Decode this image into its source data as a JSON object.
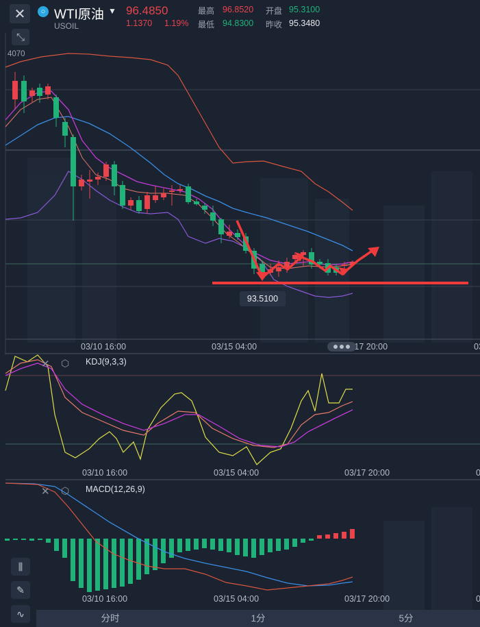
{
  "header": {
    "symbol_name": "WTI原油",
    "symbol_code": "USOIL",
    "price": "96.4850",
    "change": "1.1370",
    "change_pct": "1.19%",
    "high_label": "最高",
    "high_value": "96.8520",
    "low_label": "最低",
    "low_value": "94.8300",
    "open_label": "开盘",
    "open_value": "95.3100",
    "prev_close_label": "昨收",
    "prev_close_value": "95.3480"
  },
  "main_chart": {
    "top_price_label": "4070",
    "marked_price": "93.5100",
    "time_labels": [
      "03/10 16:00",
      "03/15 04:00",
      "03/17 20:00",
      "03"
    ]
  },
  "kdj": {
    "label": "KDJ(9,3,3)",
    "time_labels": [
      "03/10 16:00",
      "03/15 04:00",
      "03/17 20:00",
      "03"
    ]
  },
  "macd": {
    "label": "MACD(12,26,9)",
    "time_labels": [
      "03/10 16:00",
      "03/15 04:00",
      "03/17 20:00",
      "03"
    ]
  },
  "tabs": [
    {
      "label": "分时"
    },
    {
      "label": "1分"
    },
    {
      "label": "5分"
    }
  ],
  "colors": {
    "up": "#e9444c",
    "down": "#1fb37a",
    "background": "#1b2230",
    "ma_blue": "#3a8ee6",
    "ma_magenta": "#c33bd6",
    "boll_orange": "#d9553f",
    "boll_purple": "#8a5ad8",
    "kdj_k": "#e0de4a"
  },
  "icons": {
    "close": "close-icon",
    "expand": "shrink-icon",
    "symbol": "commodity-icon",
    "dropdown": "caret-down-icon",
    "indicator_close": "close-icon",
    "indicator_settings": "hexagon-settings-icon",
    "toolbar": [
      "candlestick-icon",
      "pencil-icon",
      "indicator-icon"
    ]
  }
}
